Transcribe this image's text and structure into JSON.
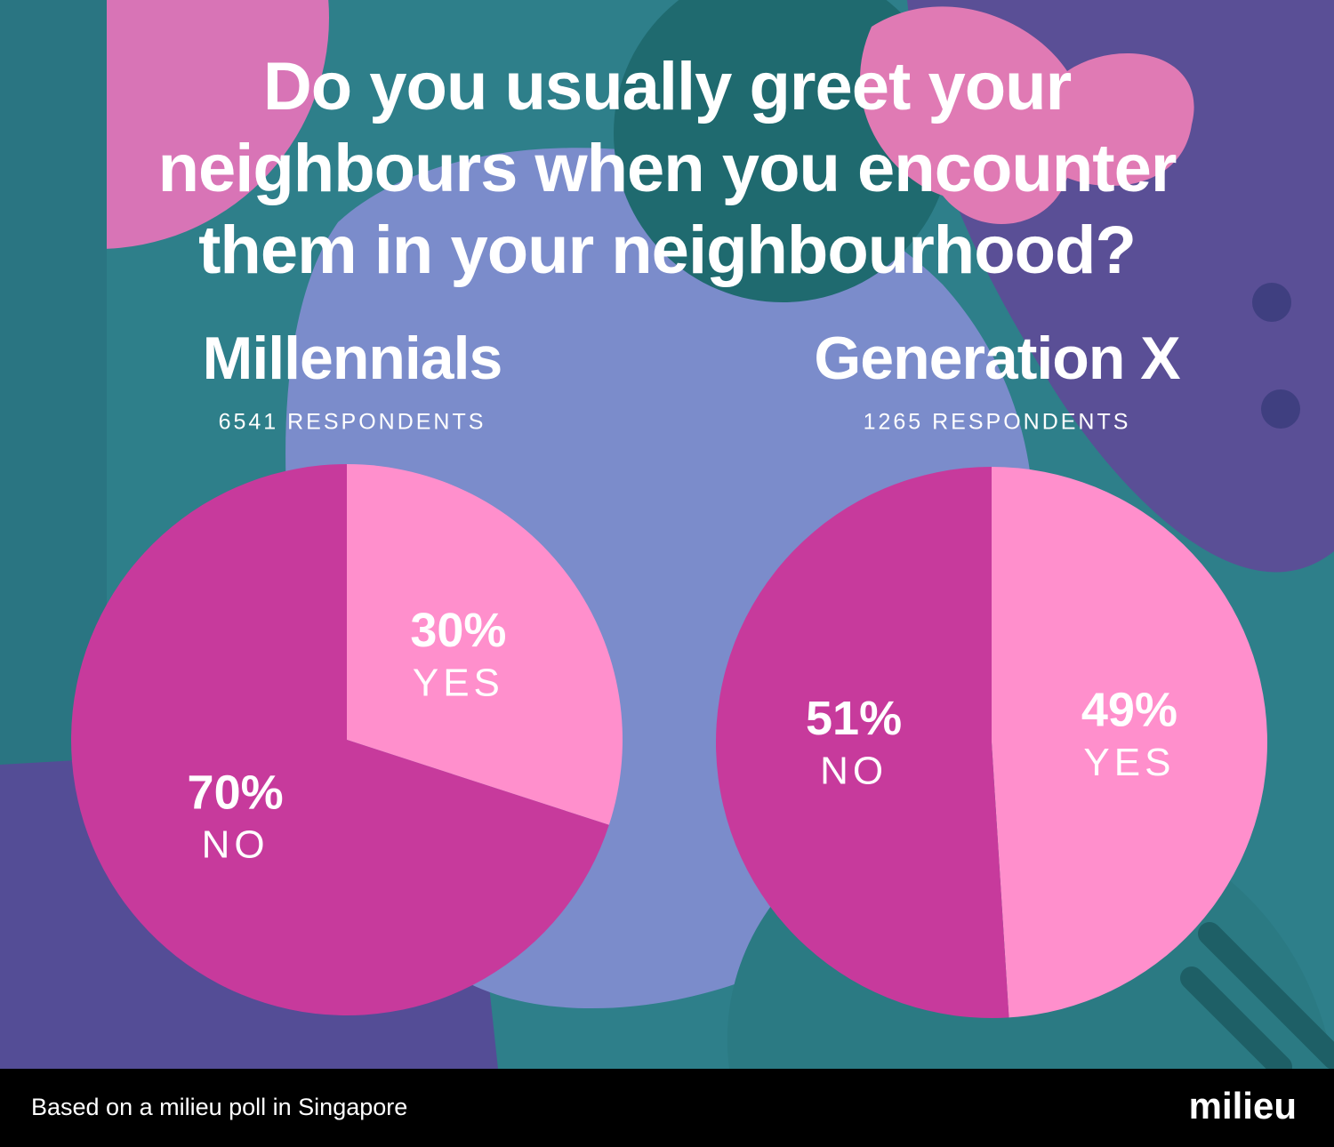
{
  "title": "Do you usually greet your neighbours when you encounter them in your neighbourhood?",
  "chart_data": [
    {
      "type": "pie",
      "title": "Millennials",
      "subtitle": "6541 RESPONDENTS",
      "categories": [
        "YES",
        "NO"
      ],
      "values": [
        30,
        70
      ],
      "value_labels": [
        "30%",
        "70%"
      ],
      "colors": [
        "#ff8fcc",
        "#c73a9c"
      ]
    },
    {
      "type": "pie",
      "title": "Generation X",
      "subtitle": "1265 RESPONDENTS",
      "categories": [
        "YES",
        "NO"
      ],
      "values": [
        49,
        51
      ],
      "value_labels": [
        "49%",
        "51%"
      ],
      "colors": [
        "#ff8fcc",
        "#c73a9c"
      ]
    }
  ],
  "footer": {
    "source": "Based on a milieu poll in Singapore",
    "logo": "milieu"
  }
}
